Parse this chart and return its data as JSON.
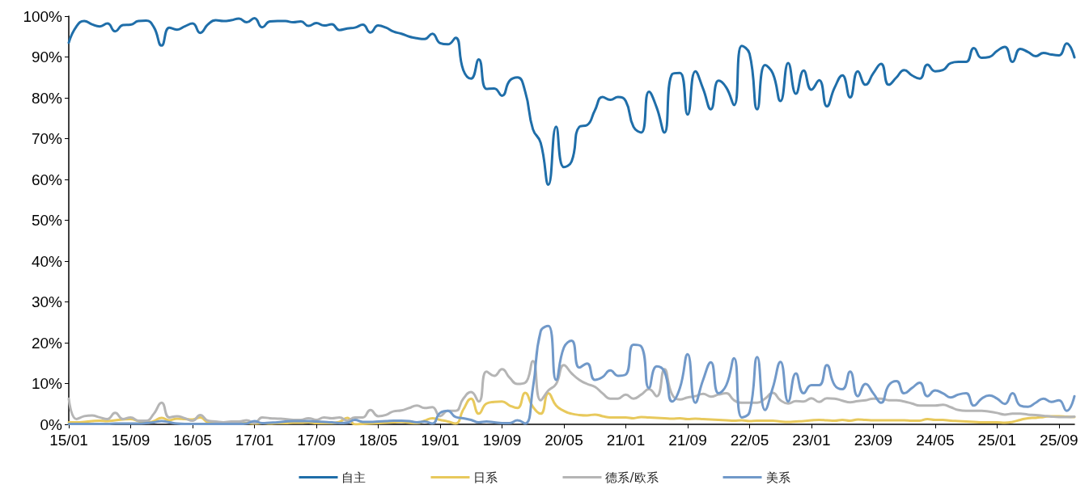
{
  "chart_data": {
    "type": "line",
    "categories": [
      "15/01",
      null,
      null,
      null,
      null,
      null,
      null,
      null,
      "15/09",
      null,
      null,
      null,
      null,
      null,
      null,
      null,
      "16/05",
      null,
      null,
      null,
      null,
      null,
      null,
      null,
      "17/01",
      null,
      null,
      null,
      null,
      null,
      null,
      null,
      "17/09",
      null,
      null,
      null,
      null,
      null,
      null,
      null,
      "18/05",
      null,
      null,
      null,
      null,
      null,
      null,
      null,
      "19/01",
      null,
      null,
      null,
      null,
      null,
      null,
      null,
      "19/09",
      null,
      null,
      null,
      null,
      null,
      null,
      null,
      "20/05",
      null,
      null,
      null,
      null,
      null,
      null,
      null,
      "21/01",
      null,
      null,
      null,
      null,
      null,
      null,
      null,
      "21/09",
      null,
      null,
      null,
      null,
      null,
      null,
      null,
      "22/05",
      null,
      null,
      null,
      null,
      null,
      null,
      null,
      "23/01",
      null,
      null,
      null,
      null,
      null,
      null,
      null,
      "23/09",
      null,
      null,
      null,
      null,
      null,
      null,
      null,
      "24/05",
      null,
      null,
      null,
      null,
      null,
      null,
      null,
      "25/01",
      null,
      null,
      null,
      null,
      null,
      null,
      null,
      "25/09",
      null,
      null
    ],
    "series": [
      {
        "name": "自主",
        "color": "#1f6ea9",
        "values": [
          93.5,
          97.5,
          98.8,
          98.0,
          97.5,
          98.2,
          96.3,
          97.8,
          97.9,
          98.8,
          98.9,
          97.3,
          92.8,
          97.2,
          96.7,
          97.5,
          98.2,
          95.9,
          98.0,
          99.0,
          98.8,
          99.0,
          99.4,
          98.5,
          99.5,
          97.3,
          98.7,
          98.8,
          98.8,
          98.5,
          98.7,
          97.6,
          98.3,
          97.7,
          98.0,
          96.6,
          97.0,
          97.2,
          97.9,
          96.0,
          97.7,
          97.2,
          96.2,
          95.7,
          95.0,
          94.6,
          94.4,
          95.7,
          93.4,
          93.1,
          94.7,
          86.8,
          84.7,
          89.4,
          82.2,
          82.3,
          80.5,
          84.2,
          85.0,
          81.5,
          72.3,
          69.0,
          58.7,
          72.9,
          63.0,
          64.4,
          72.9,
          73.3,
          76.9,
          80.2,
          79.5,
          80.2,
          79.2,
          72.9,
          71.5,
          81.5,
          77.6,
          71.5,
          85.8,
          86.1,
          75.9,
          86.5,
          82.2,
          77.2,
          84.2,
          82.5,
          78.2,
          92.7,
          90.8,
          77.2,
          88.0,
          86.0,
          79.2,
          88.5,
          81.0,
          86.7,
          82.0,
          84.3,
          77.9,
          82.5,
          85.5,
          80.1,
          86.5,
          83.2,
          86.0,
          88.3,
          83.2,
          85.0,
          86.8,
          85.5,
          84.7,
          88.1,
          86.5,
          86.8,
          88.5,
          88.8,
          88.8,
          92.2,
          89.8,
          90.0,
          91.5,
          92.5,
          88.8,
          92.0,
          91.2,
          90.2,
          91.0,
          90.6,
          90.4,
          93.3,
          89.9
        ]
      },
      {
        "name": "日系",
        "color": "#e8c95c",
        "values": [
          0.5,
          0.5,
          0.6,
          0.8,
          0.9,
          0.8,
          1.0,
          1.2,
          1.3,
          0.8,
          0.4,
          0.8,
          1.6,
          1.0,
          1.4,
          1.3,
          1.2,
          1.7,
          0.5,
          0.3,
          0.3,
          0.2,
          0.2,
          0.3,
          0.2,
          0.3,
          0.2,
          0.3,
          0.3,
          0.4,
          0.4,
          0.5,
          0.3,
          0.3,
          0.3,
          0.6,
          1.6,
          0.0,
          0.1,
          0.2,
          0.3,
          0.4,
          0.5,
          0.6,
          0.4,
          0.3,
          0.9,
          1.5,
          1.1,
          0.7,
          0.2,
          3.6,
          6.3,
          2.6,
          5.1,
          5.5,
          5.6,
          4.6,
          4.0,
          7.7,
          4.3,
          2.6,
          7.6,
          4.6,
          3.3,
          2.6,
          2.3,
          2.2,
          2.4,
          2.0,
          1.7,
          1.7,
          1.7,
          1.5,
          1.8,
          1.7,
          1.6,
          1.5,
          1.4,
          1.5,
          1.3,
          1.4,
          1.3,
          1.2,
          1.1,
          1.0,
          0.9,
          1.0,
          0.8,
          0.9,
          0.9,
          0.9,
          0.7,
          0.6,
          0.7,
          0.8,
          1.0,
          1.1,
          1.0,
          0.9,
          1.1,
          0.9,
          1.2,
          1.1,
          1.0,
          1.0,
          1.0,
          1.0,
          1.0,
          0.9,
          0.9,
          1.3,
          1.1,
          1.1,
          0.9,
          0.8,
          0.7,
          0.6,
          0.5,
          0.5,
          0.5,
          0.4,
          0.6,
          1.1,
          1.5,
          1.6,
          1.8,
          2.0,
          2.0,
          1.9,
          1.8
        ]
      },
      {
        "name": "德系/欧系",
        "color": "#b5b5b5",
        "values": [
          6.3,
          1.3,
          2.0,
          2.2,
          1.7,
          1.3,
          2.8,
          1.3,
          1.7,
          0.9,
          0.9,
          2.6,
          5.3,
          1.7,
          2.0,
          1.5,
          0.9,
          2.3,
          0.9,
          0.7,
          0.5,
          0.7,
          0.7,
          1.0,
          0.3,
          1.7,
          1.5,
          1.4,
          1.3,
          1.1,
          1.1,
          1.5,
          1.1,
          1.7,
          1.5,
          1.7,
          0.9,
          1.7,
          1.7,
          3.5,
          2.0,
          2.3,
          3.2,
          3.4,
          4.0,
          4.6,
          4.0,
          4.2,
          2.0,
          3.3,
          3.3,
          6.3,
          7.9,
          5.6,
          12.9,
          11.9,
          13.5,
          11.4,
          9.9,
          10.2,
          15.5,
          5.9,
          8.3,
          9.9,
          14.5,
          12.5,
          10.9,
          9.9,
          9.2,
          7.6,
          6.3,
          6.3,
          7.3,
          6.3,
          7.3,
          8.6,
          6.9,
          13.5,
          7.3,
          6.1,
          6.6,
          6.9,
          7.5,
          6.8,
          7.3,
          7.6,
          5.9,
          5.3,
          5.3,
          5.3,
          6.3,
          7.7,
          5.9,
          5.1,
          5.7,
          5.6,
          6.4,
          5.5,
          6.4,
          6.3,
          5.8,
          5.4,
          5.7,
          5.9,
          6.3,
          6.3,
          5.9,
          5.9,
          5.6,
          5.1,
          4.6,
          4.6,
          4.6,
          4.8,
          4.2,
          3.5,
          3.3,
          3.3,
          3.3,
          3.1,
          2.8,
          2.4,
          2.6,
          2.6,
          2.4,
          2.3,
          2.1,
          1.9,
          1.8,
          1.8,
          1.9
        ]
      },
      {
        "name": "美系",
        "color": "#7199c9",
        "values": [
          0.1,
          0.1,
          0.1,
          0.1,
          0.1,
          0.1,
          0.2,
          0.2,
          0.2,
          0.2,
          0.3,
          0.5,
          0.8,
          0.5,
          0.2,
          0.1,
          0.1,
          0.1,
          0.1,
          0.1,
          0.1,
          0.1,
          0.1,
          0.2,
          0.8,
          0.3,
          0.4,
          0.5,
          0.7,
          0.8,
          0.8,
          0.8,
          0.7,
          0.6,
          0.5,
          0.3,
          0.4,
          1.1,
          0.6,
          0.6,
          0.7,
          0.8,
          0.9,
          0.9,
          0.8,
          0.5,
          0.7,
          0.2,
          2.8,
          3.3,
          1.8,
          1.5,
          1.1,
          0.5,
          0.7,
          0.5,
          0.3,
          0.3,
          1.0,
          0.2,
          8.9,
          22.8,
          24.1,
          10.9,
          18.8,
          20.5,
          13.9,
          14.9,
          10.9,
          11.6,
          13.2,
          11.9,
          12.2,
          19.5,
          19.1,
          8.9,
          14.2,
          12.9,
          5.6,
          8.9,
          17.2,
          5.3,
          10.9,
          15.2,
          7.6,
          9.6,
          16.2,
          1.7,
          3.0,
          16.5,
          3.5,
          8.9,
          15.3,
          5.6,
          12.5,
          7.6,
          9.6,
          9.6,
          14.5,
          9.6,
          8.6,
          12.9,
          6.9,
          9.9,
          7.6,
          5.3,
          9.6,
          10.6,
          7.6,
          8.9,
          10.2,
          6.9,
          8.3,
          7.6,
          6.6,
          7.3,
          7.6,
          4.6,
          6.3,
          7.1,
          6.3,
          5.0,
          7.6,
          4.6,
          4.3,
          5.3,
          6.3,
          5.5,
          5.9,
          3.3,
          6.9
        ]
      }
    ],
    "ylim": [
      0,
      100
    ],
    "yticks": [
      {
        "value": 0,
        "label": "0%"
      },
      {
        "value": 10,
        "label": "10%"
      },
      {
        "value": 20,
        "label": "20%"
      },
      {
        "value": 30,
        "label": "30%"
      },
      {
        "value": 40,
        "label": "40%"
      },
      {
        "value": 50,
        "label": "50%"
      },
      {
        "value": 60,
        "label": "60%"
      },
      {
        "value": 70,
        "label": "70%"
      },
      {
        "value": 80,
        "label": "80%"
      },
      {
        "value": 90,
        "label": "90%"
      },
      {
        "value": 100,
        "label": "100%"
      }
    ],
    "legend": "bottom",
    "marker": "none",
    "line_style": "solid"
  }
}
